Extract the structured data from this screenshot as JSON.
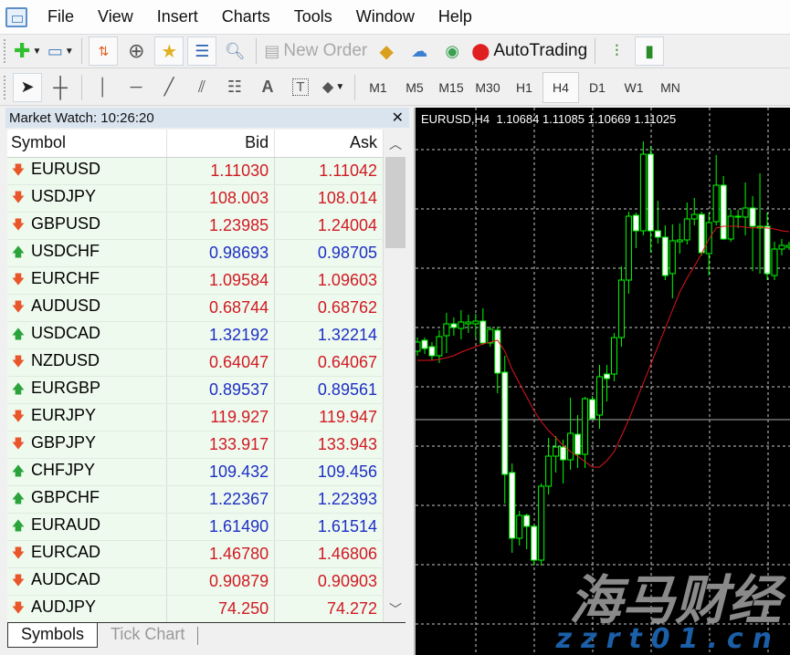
{
  "menu": [
    "File",
    "View",
    "Insert",
    "Charts",
    "Tools",
    "Window",
    "Help"
  ],
  "toolbar": {
    "new_order_label": "New Order",
    "autotrading_label": "AutoTrading",
    "icons": [
      "new-chart-icon",
      "profiles-icon",
      "market-watch-icon",
      "data-window-icon",
      "navigator-icon",
      "terminal-icon",
      "strategy-tester-icon",
      "new-order-icon",
      "metaeditor-icon",
      "cloud-icon",
      "signals-icon",
      "autotrading-icon",
      "bar-chart-icon",
      "candlestick-icon"
    ],
    "drawing_tools": [
      "cursor-icon",
      "crosshair-icon",
      "vertical-line-icon",
      "horizontal-line-icon",
      "trendline-icon",
      "equidistant-channel-icon",
      "fibonacci-icon",
      "text-icon",
      "text-label-icon",
      "arrows-icon"
    ],
    "timeframes": [
      "M1",
      "M5",
      "M15",
      "M30",
      "H1",
      "H4",
      "D1",
      "W1",
      "MN"
    ],
    "active_timeframe": "H4"
  },
  "market_watch": {
    "title": "Market Watch: 10:26:20",
    "columns": [
      "Symbol",
      "Bid",
      "Ask"
    ],
    "colors": {
      "down": "#d01a22",
      "up": "#1d2fc4"
    },
    "rows": [
      {
        "symbol": "EURUSD",
        "bid": "1.11030",
        "ask": "1.11042",
        "dir": "down"
      },
      {
        "symbol": "USDJPY",
        "bid": "108.003",
        "ask": "108.014",
        "dir": "down"
      },
      {
        "symbol": "GBPUSD",
        "bid": "1.23985",
        "ask": "1.24004",
        "dir": "down"
      },
      {
        "symbol": "USDCHF",
        "bid": "0.98693",
        "ask": "0.98705",
        "dir": "up"
      },
      {
        "symbol": "EURCHF",
        "bid": "1.09584",
        "ask": "1.09603",
        "dir": "down"
      },
      {
        "symbol": "AUDUSD",
        "bid": "0.68744",
        "ask": "0.68762",
        "dir": "down"
      },
      {
        "symbol": "USDCAD",
        "bid": "1.32192",
        "ask": "1.32214",
        "dir": "up"
      },
      {
        "symbol": "NZDUSD",
        "bid": "0.64047",
        "ask": "0.64067",
        "dir": "down"
      },
      {
        "symbol": "EURGBP",
        "bid": "0.89537",
        "ask": "0.89561",
        "dir": "up"
      },
      {
        "symbol": "EURJPY",
        "bid": "119.927",
        "ask": "119.947",
        "dir": "down"
      },
      {
        "symbol": "GBPJPY",
        "bid": "133.917",
        "ask": "133.943",
        "dir": "down"
      },
      {
        "symbol": "CHFJPY",
        "bid": "109.432",
        "ask": "109.456",
        "dir": "up"
      },
      {
        "symbol": "GBPCHF",
        "bid": "1.22367",
        "ask": "1.22393",
        "dir": "up"
      },
      {
        "symbol": "EURAUD",
        "bid": "1.61490",
        "ask": "1.61514",
        "dir": "up"
      },
      {
        "symbol": "EURCAD",
        "bid": "1.46780",
        "ask": "1.46806",
        "dir": "down"
      },
      {
        "symbol": "AUDCAD",
        "bid": "0.90879",
        "ask": "0.90903",
        "dir": "down"
      },
      {
        "symbol": "AUDJPY",
        "bid": "74.250",
        "ask": "74.272",
        "dir": "down"
      }
    ],
    "tabs": [
      "Symbols",
      "Tick Chart"
    ],
    "active_tab": "Symbols"
  },
  "chart": {
    "info": "EURUSD,H4  1.10684 1.11085 1.10669 1.11025",
    "watermark": {
      "logo_text": "海马财经",
      "site": "zzrt01.cn"
    }
  },
  "chart_data": {
    "type": "candlestick",
    "symbol": "EURUSD",
    "timeframe": "H4",
    "colors": {
      "background": "#000000",
      "bull": "#00ff00",
      "bear_body": "#ffffff",
      "ma": "#e0141e",
      "grid": "#c8c8c8"
    },
    "grid": true,
    "price_line": 1.11112,
    "candles": [
      [
        1.11337,
        1.11382,
        1.11322,
        1.11367
      ],
      [
        1.11373,
        1.11382,
        1.11328,
        1.11346
      ],
      [
        1.11352,
        1.11367,
        1.11307,
        1.11322
      ],
      [
        1.11322,
        1.11406,
        1.11298,
        1.11385
      ],
      [
        1.11388,
        1.11463,
        1.11331,
        1.11427
      ],
      [
        1.11427,
        1.11448,
        1.11388,
        1.11415
      ],
      [
        1.11412,
        1.11472,
        1.11376,
        1.11433
      ],
      [
        1.11427,
        1.11457,
        1.11397,
        1.11433
      ],
      [
        1.11427,
        1.1146,
        1.11382,
        1.11436
      ],
      [
        1.11436,
        1.11478,
        1.11358,
        1.11364
      ],
      [
        1.11364,
        1.11418,
        1.11352,
        1.11409
      ],
      [
        1.11406,
        1.11418,
        1.11199,
        1.11265
      ],
      [
        1.11268,
        1.11322,
        1.10836,
        1.10932
      ],
      [
        1.10938,
        1.10968,
        1.10674,
        1.10722
      ],
      [
        1.10722,
        1.10812,
        1.10698,
        1.10797
      ],
      [
        1.10797,
        1.10803,
        1.10686,
        1.10761
      ],
      [
        1.10761,
        1.10767,
        1.10632,
        1.1065
      ],
      [
        1.1065,
        1.10902,
        1.10632,
        1.10893
      ],
      [
        1.10893,
        1.11052,
        1.10866,
        1.10992
      ],
      [
        1.10992,
        1.11058,
        1.10938,
        1.11022
      ],
      [
        1.11022,
        1.11046,
        1.10902,
        1.1098
      ],
      [
        1.1098,
        1.11184,
        1.10947,
        1.11067
      ],
      [
        1.11064,
        1.11127,
        1.10953,
        1.10998
      ],
      [
        1.10998,
        1.11187,
        1.10953,
        1.11181
      ],
      [
        1.11178,
        1.1119,
        1.11112,
        1.11115
      ],
      [
        1.11127,
        1.11292,
        1.11082,
        1.11253
      ],
      [
        1.11262,
        1.11292,
        1.11172,
        1.11247
      ],
      [
        1.11262,
        1.11397,
        1.11238,
        1.11382
      ],
      [
        1.11382,
        1.11616,
        1.11352,
        1.11571
      ],
      [
        1.11571,
        1.11796,
        1.11526,
        1.11781
      ],
      [
        1.11784,
        1.11793,
        1.11676,
        1.11733
      ],
      [
        1.11733,
        1.12027,
        1.11718,
        1.11985
      ],
      [
        1.11985,
        1.12012,
        1.11661,
        1.11733
      ],
      [
        1.11733,
        1.11832,
        1.11691,
        1.11712
      ],
      [
        1.11712,
        1.11751,
        1.11571,
        1.11586
      ],
      [
        1.11592,
        1.11754,
        1.11511,
        1.117
      ],
      [
        1.11697,
        1.11757,
        1.11658,
        1.11703
      ],
      [
        1.11703,
        1.11826,
        1.11688,
        1.11772
      ],
      [
        1.11772,
        1.11841,
        1.11751,
        1.11787
      ],
      [
        1.11787,
        1.11796,
        1.11652,
        1.11661
      ],
      [
        1.11658,
        1.11793,
        1.11586,
        1.1176
      ],
      [
        1.11763,
        1.11982,
        1.11751,
        1.11883
      ],
      [
        1.11883,
        1.11913,
        1.11703,
        1.11706
      ],
      [
        1.11706,
        1.11802,
        1.11697,
        1.11781
      ],
      [
        1.11781,
        1.11802,
        1.11742,
        1.11778
      ],
      [
        1.11778,
        1.11892,
        1.11718,
        1.11808
      ],
      [
        1.11808,
        1.11847,
        1.116,
        1.11748
      ],
      [
        1.11748,
        1.11922,
        1.11592,
        1.11742
      ],
      [
        1.11748,
        1.11793,
        1.11571,
        1.11592
      ],
      [
        1.11586,
        1.11697,
        1.11571,
        1.11673
      ],
      [
        1.11673,
        1.11706,
        1.11652,
        1.11685
      ],
      [
        1.11679,
        1.11697,
        1.1167,
        1.11685
      ]
    ],
    "ma": [
      1.11307,
      1.11307,
      1.11307,
      1.1131,
      1.11316,
      1.11322,
      1.11334,
      1.11343,
      1.11352,
      1.11361,
      1.11367,
      1.11373,
      1.11337,
      1.11277,
      1.11232,
      1.11187,
      1.11142,
      1.11106,
      1.11076,
      1.11052,
      1.11028,
      1.11007,
      1.10992,
      1.10974,
      1.10956,
      1.10956,
      1.10977,
      1.11007,
      1.11058,
      1.11112,
      1.11172,
      1.11232,
      1.11292,
      1.11352,
      1.11412,
      1.11472,
      1.11532,
      1.11577,
      1.11616,
      1.11658,
      1.11706,
      1.11742,
      1.11748,
      1.11748,
      1.11748,
      1.11745,
      1.11742,
      1.11745,
      1.11742,
      1.11739,
      1.11733,
      1.1173
    ]
  }
}
